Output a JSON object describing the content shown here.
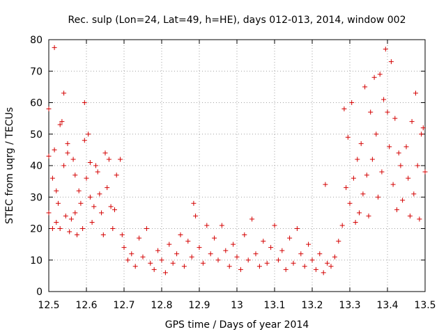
{
  "chart_data": {
    "type": "scatter",
    "title": "Rec. sulp (Lon=24, Lat=49, h=HE), days 012-013, 2014, window 002",
    "xlabel": "GPS time / Days of year 2014",
    "ylabel": "STEC from uqrg / TECUs",
    "xlim": [
      12.5,
      13.5
    ],
    "ylim": [
      0,
      80
    ],
    "xticks": [
      "12.5",
      "12.6",
      "12.7",
      "12.8",
      "12.9",
      "13",
      "13.1",
      "13.2",
      "13.3",
      "13.4",
      "13.5"
    ],
    "xtick_values": [
      12.5,
      12.6,
      12.7,
      12.8,
      12.9,
      13.0,
      13.1,
      13.2,
      13.3,
      13.4,
      13.5
    ],
    "yticks": [
      "0",
      "10",
      "20",
      "30",
      "40",
      "50",
      "60",
      "70",
      "80"
    ],
    "ytick_values": [
      0,
      10,
      20,
      30,
      40,
      50,
      60,
      70,
      80
    ],
    "grid": true,
    "marker": "+",
    "color": "#d40000",
    "series": [
      {
        "name": "STEC",
        "points": [
          [
            12.5,
            43
          ],
          [
            12.5,
            58
          ],
          [
            12.5,
            25
          ],
          [
            12.51,
            20
          ],
          [
            12.51,
            36
          ],
          [
            12.515,
            45
          ],
          [
            12.515,
            77.5
          ],
          [
            12.52,
            32
          ],
          [
            12.52,
            22
          ],
          [
            12.525,
            28
          ],
          [
            12.53,
            53
          ],
          [
            12.53,
            20
          ],
          [
            12.535,
            54
          ],
          [
            12.54,
            63
          ],
          [
            12.54,
            40
          ],
          [
            12.545,
            24
          ],
          [
            12.55,
            47
          ],
          [
            12.55,
            44
          ],
          [
            12.555,
            19
          ],
          [
            12.56,
            23
          ],
          [
            12.565,
            42
          ],
          [
            12.57,
            37
          ],
          [
            12.57,
            25
          ],
          [
            12.575,
            18
          ],
          [
            12.58,
            32
          ],
          [
            12.585,
            28
          ],
          [
            12.59,
            20
          ],
          [
            12.595,
            60
          ],
          [
            12.595,
            48
          ],
          [
            12.6,
            36
          ],
          [
            12.605,
            50
          ],
          [
            12.61,
            41
          ],
          [
            12.61,
            30
          ],
          [
            12.615,
            22
          ],
          [
            12.62,
            27
          ],
          [
            12.625,
            40
          ],
          [
            12.63,
            38
          ],
          [
            12.635,
            31
          ],
          [
            12.64,
            25
          ],
          [
            12.645,
            18
          ],
          [
            12.65,
            44
          ],
          [
            12.655,
            33
          ],
          [
            12.66,
            42
          ],
          [
            12.665,
            27
          ],
          [
            12.67,
            20
          ],
          [
            12.675,
            26
          ],
          [
            12.68,
            37
          ],
          [
            12.69,
            42
          ],
          [
            12.695,
            18
          ],
          [
            12.7,
            14
          ],
          [
            12.71,
            10
          ],
          [
            12.72,
            12
          ],
          [
            12.73,
            8
          ],
          [
            12.74,
            17
          ],
          [
            12.75,
            11
          ],
          [
            12.76,
            20
          ],
          [
            12.77,
            9
          ],
          [
            12.78,
            7
          ],
          [
            12.79,
            13
          ],
          [
            12.8,
            10
          ],
          [
            12.81,
            6
          ],
          [
            12.82,
            15
          ],
          [
            12.83,
            9
          ],
          [
            12.84,
            12
          ],
          [
            12.85,
            18
          ],
          [
            12.86,
            8
          ],
          [
            12.87,
            16
          ],
          [
            12.88,
            11
          ],
          [
            12.885,
            28
          ],
          [
            12.89,
            24
          ],
          [
            12.9,
            14
          ],
          [
            12.91,
            9
          ],
          [
            12.92,
            21
          ],
          [
            12.93,
            12
          ],
          [
            12.94,
            17
          ],
          [
            12.95,
            10
          ],
          [
            12.96,
            21
          ],
          [
            12.97,
            13
          ],
          [
            12.98,
            8
          ],
          [
            12.99,
            15
          ],
          [
            13.0,
            11
          ],
          [
            13.01,
            7
          ],
          [
            13.02,
            18
          ],
          [
            13.03,
            10
          ],
          [
            13.04,
            23
          ],
          [
            13.05,
            12
          ],
          [
            13.06,
            8
          ],
          [
            13.07,
            16
          ],
          [
            13.08,
            9
          ],
          [
            13.09,
            14
          ],
          [
            13.1,
            21
          ],
          [
            13.11,
            10
          ],
          [
            13.12,
            13
          ],
          [
            13.13,
            7
          ],
          [
            13.14,
            17
          ],
          [
            13.15,
            9
          ],
          [
            13.16,
            20
          ],
          [
            13.17,
            12
          ],
          [
            13.18,
            8
          ],
          [
            13.19,
            15
          ],
          [
            13.2,
            10
          ],
          [
            13.21,
            7
          ],
          [
            13.22,
            12
          ],
          [
            13.23,
            6
          ],
          [
            13.235,
            34
          ],
          [
            13.24,
            9
          ],
          [
            13.25,
            8
          ],
          [
            13.26,
            11
          ],
          [
            13.27,
            16
          ],
          [
            13.28,
            21
          ],
          [
            13.285,
            58
          ],
          [
            13.29,
            33
          ],
          [
            13.295,
            49
          ],
          [
            13.3,
            28
          ],
          [
            13.305,
            60
          ],
          [
            13.31,
            36
          ],
          [
            13.315,
            22
          ],
          [
            13.32,
            42
          ],
          [
            13.325,
            25
          ],
          [
            13.33,
            47
          ],
          [
            13.335,
            31
          ],
          [
            13.34,
            65
          ],
          [
            13.345,
            37
          ],
          [
            13.35,
            24
          ],
          [
            13.355,
            57
          ],
          [
            13.36,
            42
          ],
          [
            13.365,
            68
          ],
          [
            13.37,
            50
          ],
          [
            13.375,
            30
          ],
          [
            13.38,
            69
          ],
          [
            13.385,
            38
          ],
          [
            13.39,
            61
          ],
          [
            13.395,
            77
          ],
          [
            13.4,
            57
          ],
          [
            13.405,
            46
          ],
          [
            13.41,
            73
          ],
          [
            13.415,
            34
          ],
          [
            13.42,
            55
          ],
          [
            13.425,
            26
          ],
          [
            13.43,
            44
          ],
          [
            13.435,
            40
          ],
          [
            13.44,
            29
          ],
          [
            13.45,
            46
          ],
          [
            13.455,
            36
          ],
          [
            13.46,
            24
          ],
          [
            13.465,
            54
          ],
          [
            13.47,
            31
          ],
          [
            13.475,
            63
          ],
          [
            13.48,
            40
          ],
          [
            13.485,
            23
          ],
          [
            13.49,
            50
          ],
          [
            13.495,
            52
          ],
          [
            13.5,
            38
          ]
        ]
      }
    ]
  }
}
